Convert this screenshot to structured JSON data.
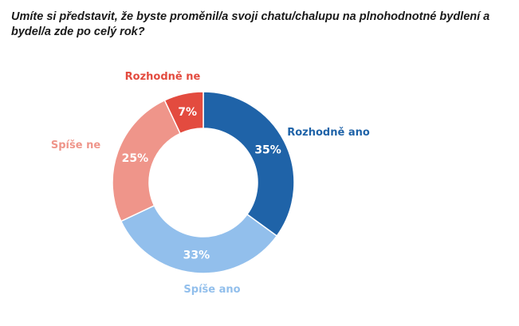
{
  "title": "Umíte si představit, že byste proměnil/a svoji chatu/chalupu na plnohodnotné bydlení a bydel/a zde po celý rok?",
  "chart_data": {
    "type": "pie",
    "style": "donut",
    "title": "Umíte si představit, že byste proměnil/a svoji chatu/chalupu na plnohodnotné bydlení a bydel/a zde po celý rok?",
    "slices": [
      {
        "label": "Rozhodně ano",
        "value": 35,
        "value_label": "35%",
        "color": "#1f63a8"
      },
      {
        "label": "Spíše ano",
        "value": 33,
        "value_label": "33%",
        "color": "#92bfec"
      },
      {
        "label": "Spíše ne",
        "value": 25,
        "value_label": "25%",
        "color": "#ef958a"
      },
      {
        "label": "Rozhodně ne",
        "value": 7,
        "value_label": "7%",
        "color": "#e34b3f"
      }
    ],
    "start_angle": "12 o'clock",
    "direction": "clockwise",
    "legend": "labels beside slices"
  }
}
